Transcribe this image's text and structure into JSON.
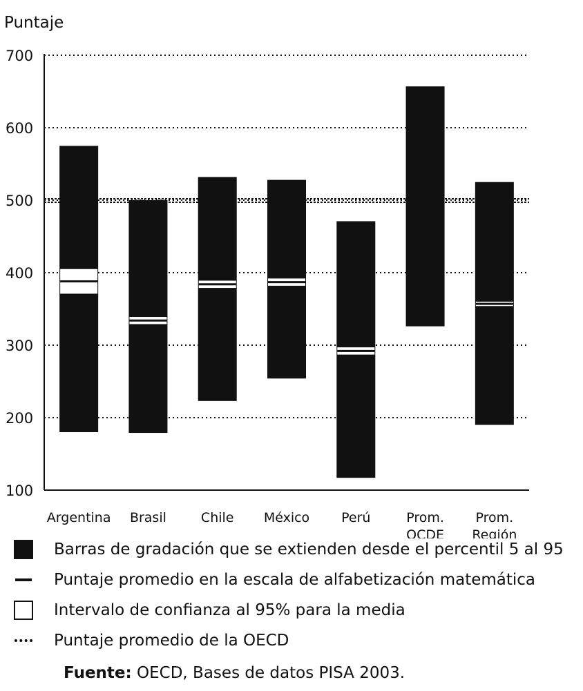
{
  "chart_data": {
    "type": "bar",
    "ylabel": "Puntaje",
    "ylim": [
      100,
      700
    ],
    "yticks": [
      "100",
      "200",
      "300",
      "400",
      "500",
      "600",
      "700"
    ],
    "grid": "dotted horizontal",
    "categories": [
      [
        "Argentina"
      ],
      [
        "Brasil"
      ],
      [
        "Chile"
      ],
      [
        "México"
      ],
      [
        "Perú"
      ],
      [
        "Prom.",
        "OCDE"
      ],
      [
        "Prom.",
        "Región"
      ]
    ],
    "series": [
      {
        "name": "Barras de gradación que se extienden desde el percentil 5 al 95",
        "p5": [
          180,
          179,
          223,
          254,
          117,
          326,
          190
        ],
        "p95": [
          575,
          500,
          532,
          528,
          471,
          657,
          525
        ]
      },
      {
        "name": "Puntaje promedio en la escala de alfabetización matemática",
        "values": [
          388,
          334,
          384,
          387,
          292,
          null,
          357
        ]
      },
      {
        "name": "Intervalo de confianza al 95% para la media",
        "ci": [
          [
            371,
            405
          ],
          [
            329,
            339
          ],
          [
            379,
            389
          ],
          [
            382,
            392
          ],
          [
            287,
            297
          ],
          null,
          [
            354,
            360
          ]
        ]
      },
      {
        "name": "Puntaje promedio de la OECD",
        "value": 500
      }
    ]
  },
  "legend": {
    "bar": "Barras de gradación que se extienden desde el percentil 5 al 95",
    "mean": "Puntaje promedio en la escala de alfabetización matemática",
    "ci": "Intervalo de confianza al 95% para la media",
    "oecd": "Puntaje promedio de la OECD"
  },
  "source": {
    "label": "Fuente:",
    "text": " OECD, Bases de datos PISA 2003."
  },
  "colors": {
    "bar": "#111111",
    "background": "#ffffff"
  }
}
